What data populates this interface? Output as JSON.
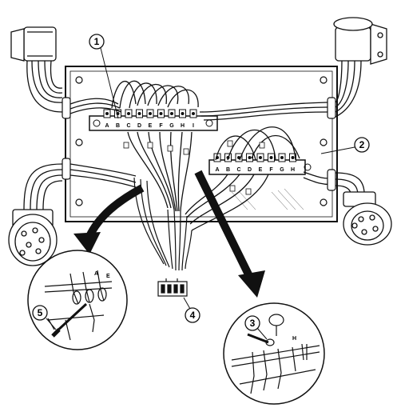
{
  "figure": {
    "callouts": [
      "1",
      "2",
      "3",
      "4",
      "5"
    ],
    "terminal_strip_upper_letters": [
      "A",
      "B",
      "C",
      "D",
      "E",
      "F",
      "G",
      "H",
      "I"
    ],
    "terminal_strip_lower_letters": [
      "A",
      "B",
      "C",
      "D",
      "E",
      "F",
      "G",
      "H"
    ],
    "detail_left_letters": [
      "A",
      "E"
    ],
    "detail_right_letters": [
      "H"
    ],
    "colors": {
      "ink": "#111111",
      "paper": "#ffffff"
    }
  }
}
